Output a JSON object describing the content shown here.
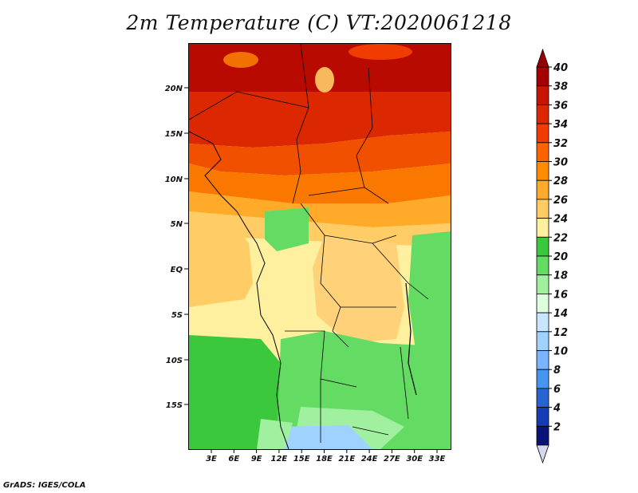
{
  "title": "2m Temperature (C) VT:2020061218",
  "footer": "GrADS: IGES/COLA",
  "map": {
    "lat_ticks": [
      "20N",
      "15N",
      "10N",
      "5N",
      "EQ",
      "5S",
      "10S",
      "15S"
    ],
    "lon_ticks": [
      "3E",
      "6E",
      "9E",
      "12E",
      "15E",
      "18E",
      "21E",
      "24E",
      "27E",
      "30E",
      "33E"
    ]
  },
  "colorbar": {
    "levels": [
      "40",
      "38",
      "36",
      "34",
      "32",
      "30",
      "28",
      "26",
      "24",
      "22",
      "20",
      "18",
      "16",
      "14",
      "12",
      "10",
      "8",
      "6",
      "4",
      "2"
    ],
    "colors": [
      "#a50000",
      "#c81400",
      "#dc2800",
      "#f03c00",
      "#fa6400",
      "#ff8c00",
      "#ffaa28",
      "#ffcc66",
      "#fff0a0",
      "#3cc83c",
      "#64dc64",
      "#a0f0a0",
      "#dcffdc",
      "#c8e6ff",
      "#a0d2ff",
      "#78b4ff",
      "#4696f0",
      "#2864d2",
      "#143cb4",
      "#0a1478"
    ],
    "top_arrow_color": "#960000",
    "bottom_arrow_color": "#d6d6f0"
  }
}
